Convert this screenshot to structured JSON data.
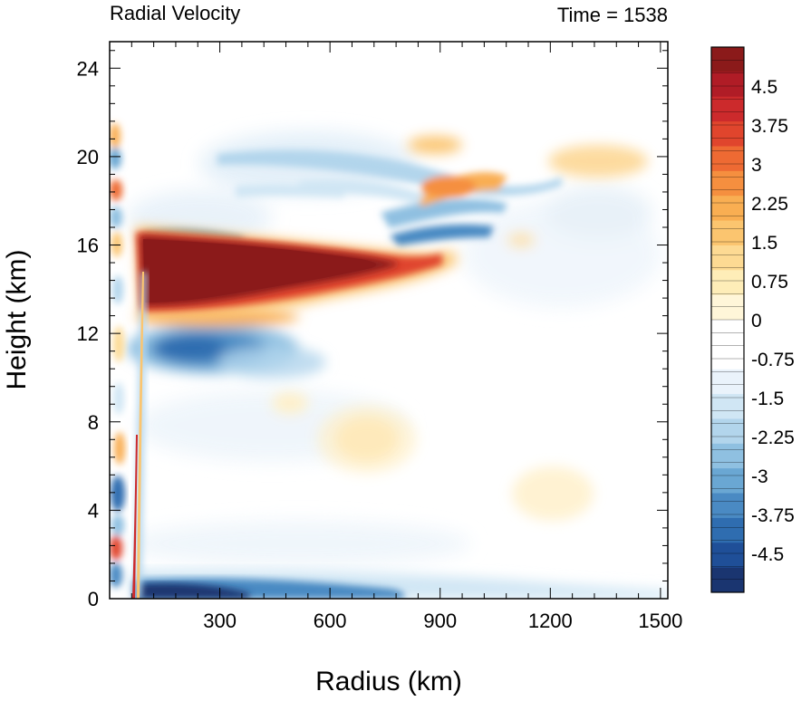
{
  "chart_data": {
    "type": "heatmap",
    "title_left": "Radial Velocity",
    "title_right": "Time = 1538",
    "xlabel": "Radius (km)",
    "ylabel": "Height (km)",
    "xlim": [
      0,
      1520
    ],
    "ylim": [
      0,
      25.2
    ],
    "xticks": [
      300,
      600,
      900,
      1200,
      1500
    ],
    "yticks": [
      0,
      4,
      8,
      12,
      16,
      20,
      24
    ],
    "colorbar": {
      "min": -5.25,
      "max": 5.25,
      "step": 0.25,
      "labels": [
        "4.5",
        "3.75",
        "3",
        "2.25",
        "1.5",
        "0.75",
        "0",
        "-0.75",
        "-1.5",
        "-2.25",
        "-3",
        "-3.75",
        "-4.5"
      ],
      "label_values": [
        4.5,
        3.75,
        3,
        2.25,
        1.5,
        0.75,
        0,
        -0.75,
        -1.5,
        -2.25,
        -3,
        -3.75,
        -4.5
      ],
      "colors_top_to_bottom": [
        "#8b1a1a",
        "#b01c26",
        "#cc2a2c",
        "#e0452d",
        "#ee6a33",
        "#f58f3f",
        "#f9ae52",
        "#fbc56f",
        "#fdda93",
        "#feedb8",
        "#fff6d9",
        "#ffffff",
        "#ffffff",
        "#eaf3fb",
        "#d0e6f4",
        "#b2d5ec",
        "#8fc0e1",
        "#6aa7d3",
        "#4a8ac3",
        "#2f6db0",
        "#1f4f98",
        "#1a3570"
      ]
    },
    "features": [
      {
        "label": "outflow",
        "r": [
          95,
          900
        ],
        "z": [
          12.5,
          16.4
        ],
        "peak": 5.25
      },
      {
        "label": "inflow_boundary",
        "r": [
          90,
          720
        ],
        "z": [
          0,
          0.8
        ],
        "peak": -5.0
      },
      {
        "label": "inflow_mid",
        "r": [
          110,
          420
        ],
        "z": [
          10.3,
          12.6
        ],
        "peak": -3.8
      },
      {
        "label": "upper_outflow",
        "r": [
          820,
          1020
        ],
        "z": [
          17.8,
          19.2
        ],
        "peak": 2.8
      }
    ]
  }
}
